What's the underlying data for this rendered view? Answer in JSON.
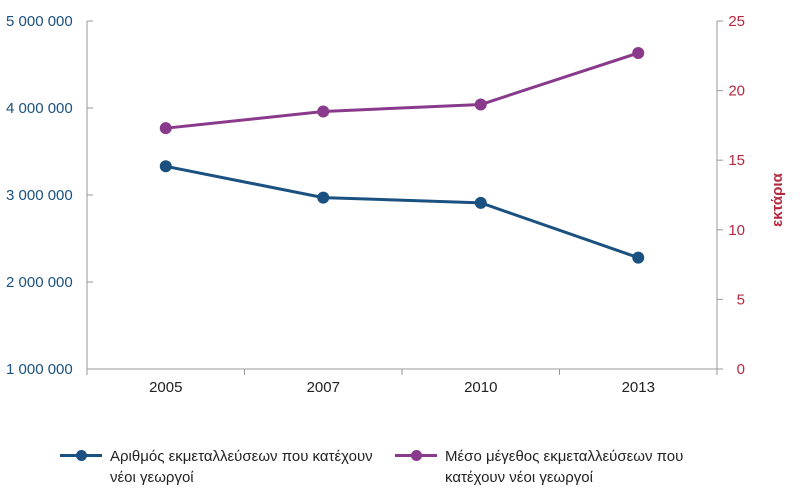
{
  "chart_data": {
    "type": "line",
    "categories": [
      "2005",
      "2007",
      "2010",
      "2013"
    ],
    "series": [
      {
        "name": "Αριθμός εκμεταλλεύσεων που κατέχουν νέοι γεωργοί",
        "axis": "left",
        "color": "#1a5180",
        "values": [
          3330000,
          2970000,
          2910000,
          2280000
        ]
      },
      {
        "name": "Μέσο μέγεθος εκμεταλλεύσεων που κατέχουν νέοι γεωργοί",
        "axis": "right",
        "color": "#8a3a8c",
        "values": [
          17.3,
          18.5,
          19.0,
          22.7
        ]
      }
    ],
    "y_left": {
      "ylim": [
        1000000,
        5000000
      ],
      "ticks": [
        1000000,
        2000000,
        3000000,
        4000000,
        5000000
      ],
      "tick_labels": [
        "1 000 000",
        "2 000 000",
        "3 000 000",
        "4 000 000",
        "5 000 000"
      ],
      "color": "#1a5180"
    },
    "y_right": {
      "ylim": [
        0,
        25
      ],
      "ticks": [
        0,
        5,
        10,
        15,
        20,
        25
      ],
      "tick_labels": [
        "0",
        "5",
        "10",
        "15",
        "20",
        "25"
      ],
      "label": "εκτάρια",
      "color": "#b5283f"
    },
    "grid": false,
    "legend": "bottom"
  }
}
